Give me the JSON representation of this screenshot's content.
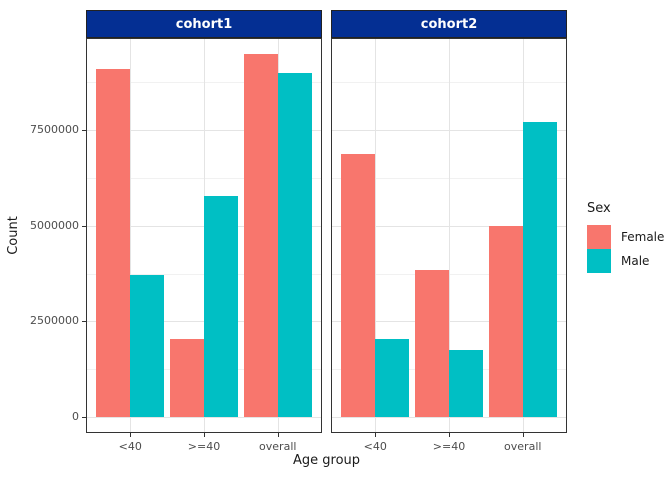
{
  "figure": {
    "background": "#FFFFFF",
    "panel_background": "#FFFFFF",
    "panel_border_color": "#333333",
    "grid_major_color": "#E4E4E4",
    "grid_minor_color": "#F1F1F1",
    "strip_bg": "#042F93",
    "strip_text_color": "#FFFFFF",
    "axis_text_color": "#4D4D4D",
    "axis_title_color": "#1A1A1A",
    "tick_color": "#333333"
  },
  "legend": {
    "title": "Sex",
    "position": "right",
    "entries": [
      {
        "label": "Female",
        "color": "#F8766D"
      },
      {
        "label": "Male",
        "color": "#00BFC4"
      }
    ]
  },
  "chart_data": {
    "type": "bar",
    "title": "",
    "xlabel": "Age group",
    "ylabel": "Count",
    "grid": true,
    "legend_position": "right",
    "categories": [
      "<40",
      ">=40",
      "overall"
    ],
    "facets": [
      {
        "label": "cohort1",
        "series": [
          {
            "name": "Female",
            "color": "#F8766D",
            "values": [
              9100000,
              2050000,
              9500000
            ]
          },
          {
            "name": "Male",
            "color": "#00BFC4",
            "values": [
              3720000,
              5770000,
              9000000
            ]
          }
        ]
      },
      {
        "label": "cohort2",
        "series": [
          {
            "name": "Female",
            "color": "#F8766D",
            "values": [
              6870000,
              3850000,
              5000000
            ]
          },
          {
            "name": "Male",
            "color": "#00BFC4",
            "values": [
              2050000,
              1760000,
              7720000
            ]
          }
        ]
      }
    ],
    "y_ticks": [
      0,
      2500000,
      5000000,
      7500000
    ],
    "y_tick_labels": [
      "0",
      "2500000",
      "5000000",
      "7500000"
    ],
    "y_minor_ticks": [
      1250000,
      3750000,
      6250000,
      8750000
    ],
    "ylim": [
      0,
      9975000
    ]
  }
}
